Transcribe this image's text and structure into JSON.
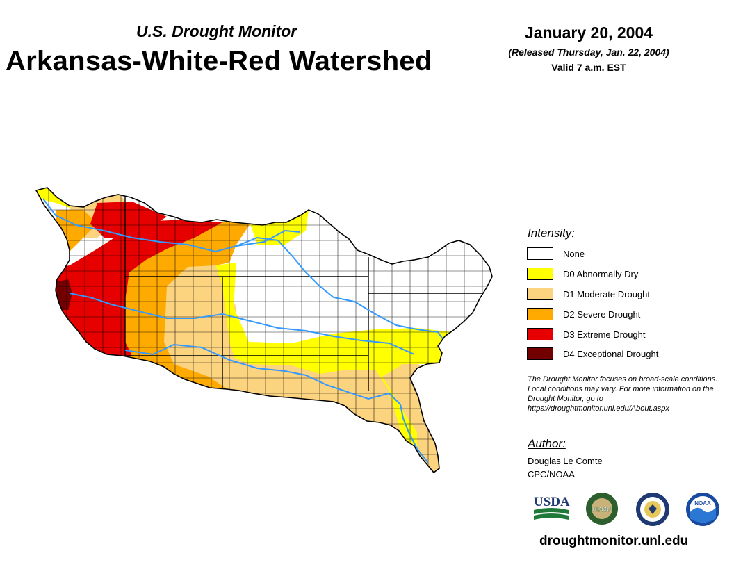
{
  "header": {
    "subtitle": "U.S. Drought Monitor",
    "title": "Arkansas-White-Red Watershed",
    "date": "January 20, 2004",
    "released": "(Released Thursday, Jan. 22, 2004)",
    "valid": "Valid 7 a.m. EST"
  },
  "legend": {
    "title": "Intensity:",
    "items": [
      {
        "label": "None",
        "color": "#ffffff"
      },
      {
        "label": "D0 Abnormally Dry",
        "color": "#ffff00"
      },
      {
        "label": "D1 Moderate Drought",
        "color": "#fcd37f"
      },
      {
        "label": "D2 Severe Drought",
        "color": "#ffaa00"
      },
      {
        "label": "D3 Extreme Drought",
        "color": "#e60000"
      },
      {
        "label": "D4 Exceptional Drought",
        "color": "#730000"
      }
    ]
  },
  "note": "The Drought Monitor focuses on broad-scale conditions. Local conditions may vary. For more information on the Drought Monitor, go to https://droughtmonitor.unl.edu/About.aspx",
  "author": {
    "title": "Author:",
    "name": "Douglas Le Comte",
    "org": "CPC/NOAA"
  },
  "logos": {
    "usda": "USDA",
    "ndmc": "NDMC",
    "noaa": "NOAA",
    "commerce_icon": "department-of-commerce-seal-icon"
  },
  "footer": {
    "site": "droughtmonitor.unl.edu"
  },
  "map": {
    "river_color": "#3399ff",
    "county_line_color": "#000000"
  }
}
